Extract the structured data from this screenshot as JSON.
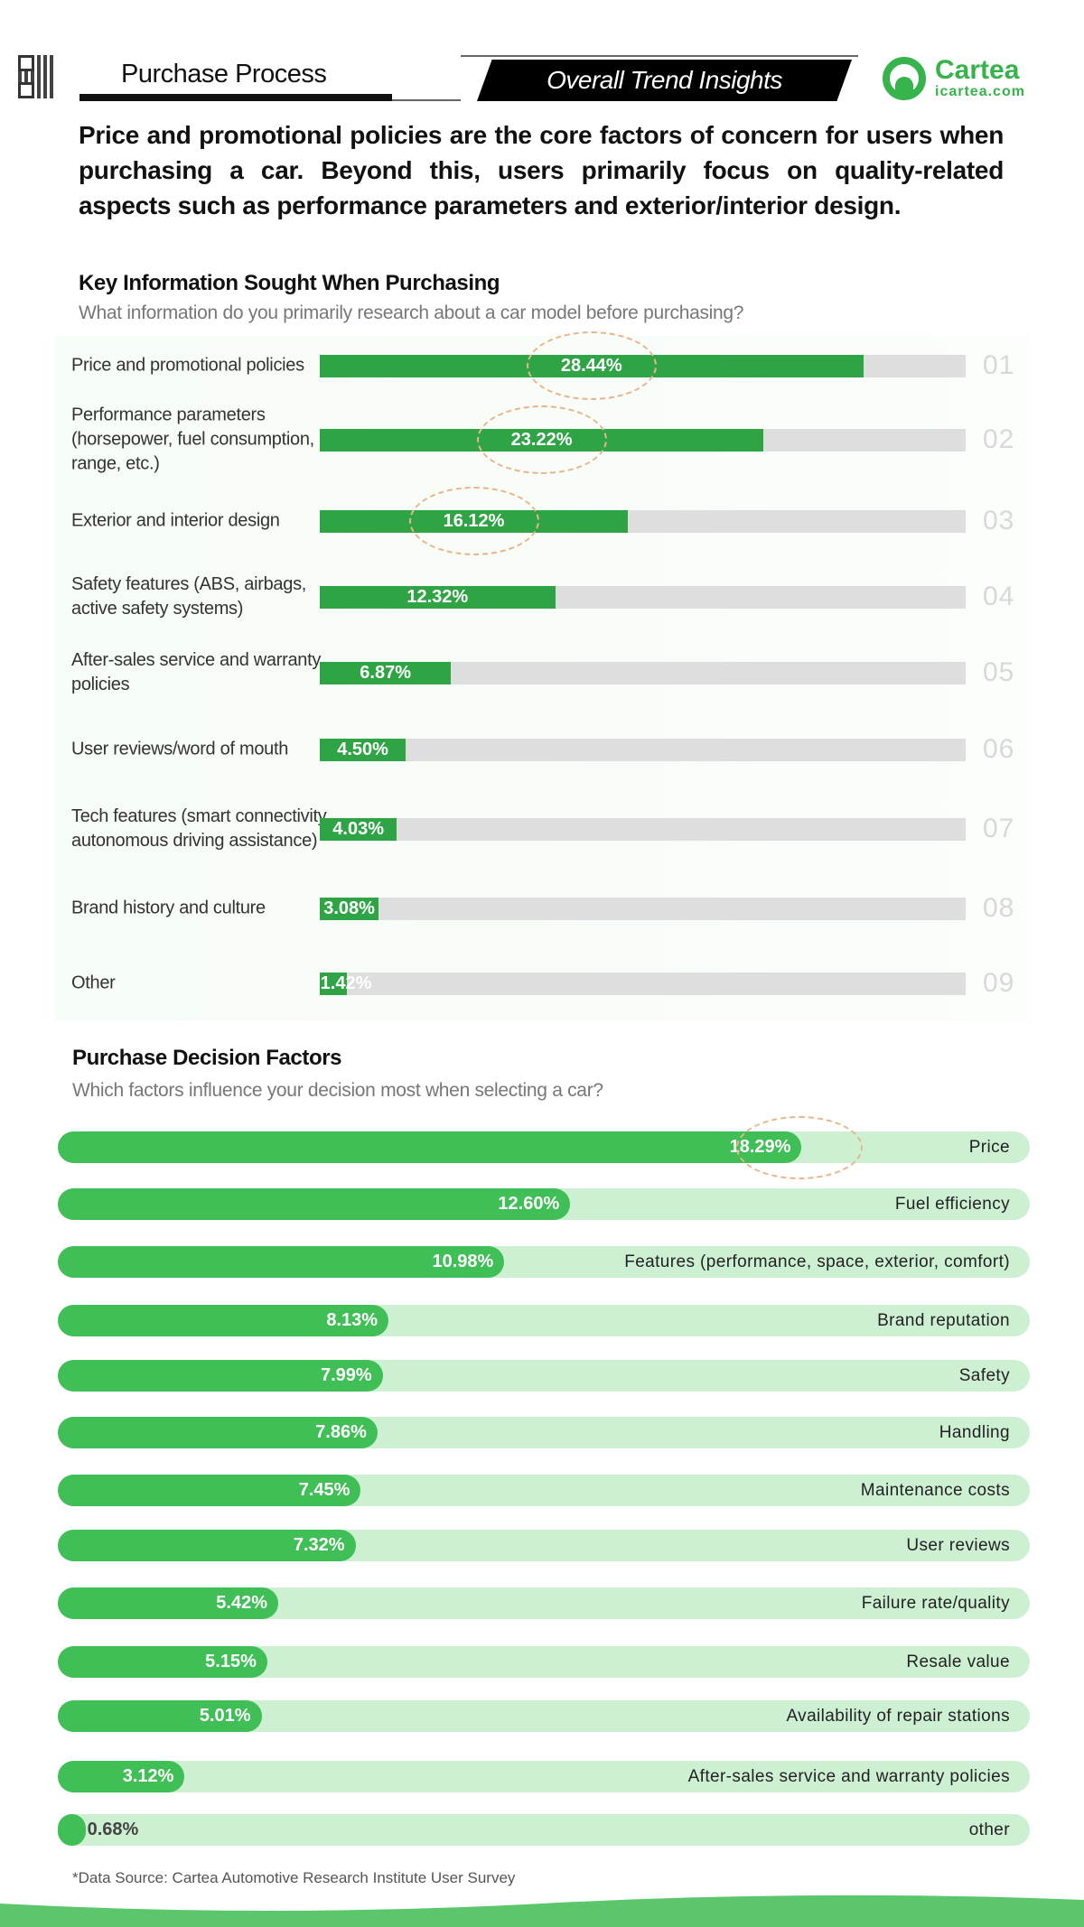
{
  "header": {
    "section": "Purchase Process",
    "banner": "Overall Trend Insights",
    "brand": {
      "name": "Cartea",
      "url": "icartea.com",
      "color": "#36b34a"
    }
  },
  "headline": "Price and promotional policies are the core factors of concern for users when purchasing a car. Beyond this, users primarily focus on quality-related aspects such as performance parameters and exterior/interior design.",
  "chart_data": [
    {
      "type": "bar",
      "orientation": "horizontal",
      "title": "Key Information Sought When Purchasing",
      "subtitle": "What information do you primarily research about a car model before purchasing?",
      "categories": [
        "Price and promotional policies",
        "Performance parameters (horsepower, fuel consumption, range, etc.)",
        "Exterior and interior design",
        "Safety features (ABS, airbags, active safety systems)",
        "After-sales service and warranty policies",
        "User reviews/word of mouth",
        "Tech features (smart connectivity, autonomous driving assistance)",
        "Brand history and culture",
        "Other"
      ],
      "values": [
        28.44,
        23.22,
        16.12,
        12.32,
        6.87,
        4.5,
        4.03,
        3.08,
        1.42
      ],
      "labels": [
        "28.44%",
        "23.22%",
        "16.12%",
        "12.32%",
        "6.87%",
        "4.50%",
        "4.03%",
        "3.08%",
        "1.42%"
      ],
      "ranks": [
        "01",
        "02",
        "03",
        "04",
        "05",
        "06",
        "07",
        "08",
        "09"
      ],
      "highlighted": [
        0,
        1,
        2
      ],
      "bar_color": "#2ea445",
      "track_color": "#dedede"
    },
    {
      "type": "bar",
      "orientation": "horizontal",
      "title": "Purchase Decision Factors",
      "subtitle": "Which factors influence your decision most when selecting a car?",
      "categories": [
        "Price",
        "Fuel efficiency",
        "Features (performance, space, exterior, comfort)",
        "Brand reputation",
        "Safety",
        "Handling",
        "Maintenance costs",
        "User reviews",
        "Failure rate/quality",
        "Resale value",
        "Availability of repair stations",
        "After-sales service and warranty policies",
        "other"
      ],
      "values": [
        18.29,
        12.6,
        10.98,
        8.13,
        7.99,
        7.86,
        7.45,
        7.32,
        5.42,
        5.15,
        5.01,
        3.12,
        0.68
      ],
      "labels": [
        "18.29%",
        "12.60%",
        "10.98%",
        "8.13%",
        "7.99%",
        "7.86%",
        "7.45%",
        "7.32%",
        "5.42%",
        "5.15%",
        "5.01%",
        "3.12%",
        "0.68%"
      ],
      "highlighted": [
        0
      ],
      "bar_color": "#3fbf55",
      "track_color": "#cdf0d3"
    }
  ],
  "footer": {
    "source": "*Data Source: Cartea Automotive Research Institute User Survey"
  }
}
